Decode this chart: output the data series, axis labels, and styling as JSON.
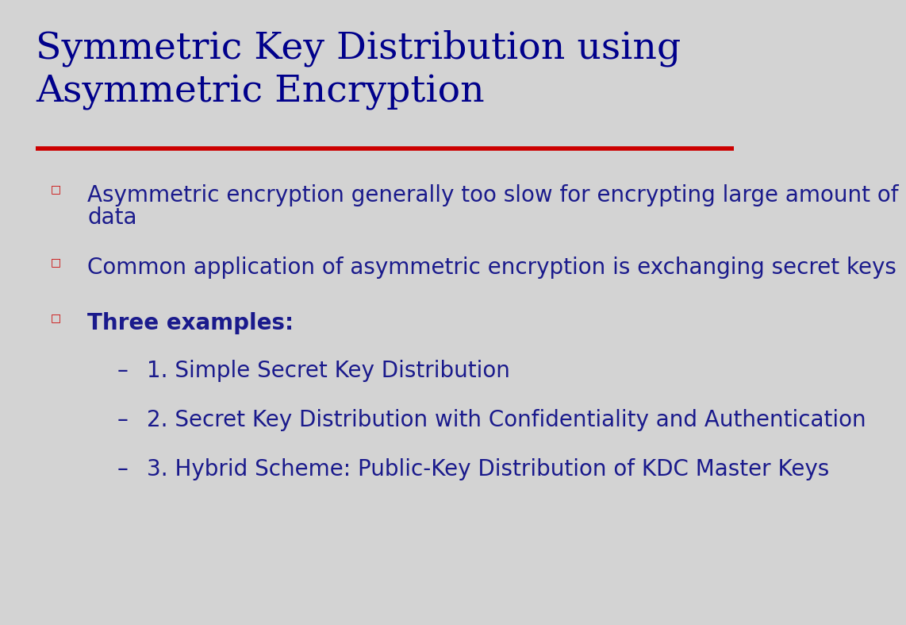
{
  "title_line1": "Symmetric Key Distribution using",
  "title_line2": "Asymmetric Encryption",
  "title_color": "#00008B",
  "title_fontsize": 34,
  "background_color": "#D3D3D3",
  "red_line_color": "#CC0000",
  "bullet_color": "#CC0000",
  "text_color": "#1a1a8c",
  "bullet_char": "□",
  "dash_char": "–",
  "bullet_fontsize": 20,
  "sub_fontsize": 20,
  "bullets": [
    {
      "text": "Asymmetric encryption generally too slow for encrypting large amount of\n        data",
      "bold": false
    },
    {
      "text": "Common application of asymmetric encryption is exchanging secret keys",
      "bold": false
    },
    {
      "text": "Three examples:",
      "bold": true
    }
  ],
  "subbullets": [
    "1. Simple Secret Key Distribution",
    "2. Secret Key Distribution with Confidentiality and Authentication",
    "3. Hybrid Scheme: Public-Key Distribution of KDC Master Keys"
  ]
}
